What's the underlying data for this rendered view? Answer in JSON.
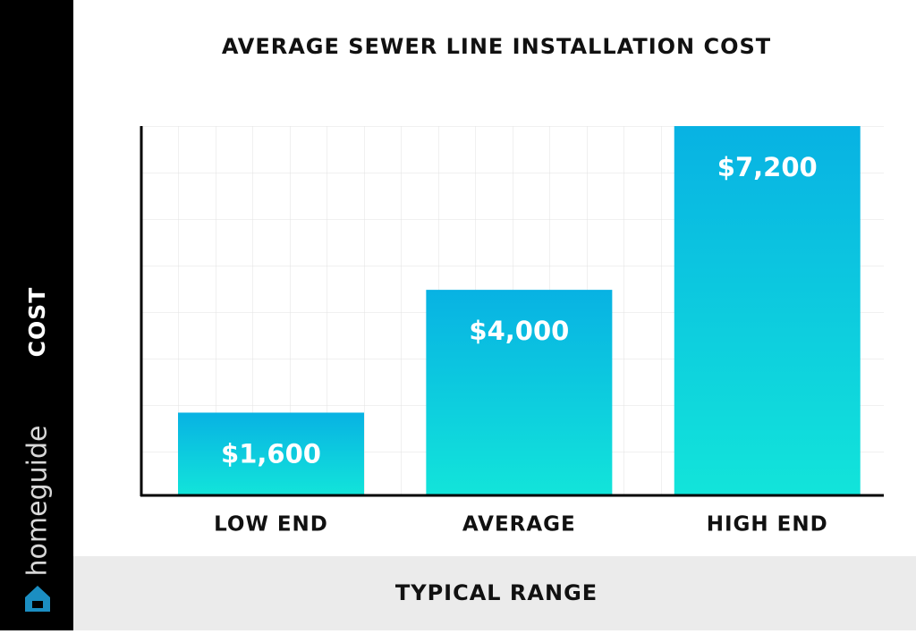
{
  "brand": "homeguide",
  "chart_data": {
    "type": "bar",
    "title": "AVERAGE SEWER LINE INSTALLATION COST",
    "y_label": "COST",
    "x_label": "TYPICAL RANGE",
    "categories": [
      "LOW END",
      "AVERAGE",
      "HIGH END"
    ],
    "values": [
      1600,
      4000,
      7200
    ],
    "value_labels": [
      "$1,600",
      "$4,000",
      "$7,200"
    ],
    "ylim": [
      0,
      7200
    ],
    "grid": true,
    "gradient": [
      "#08b2e3",
      "#12e4da"
    ]
  }
}
